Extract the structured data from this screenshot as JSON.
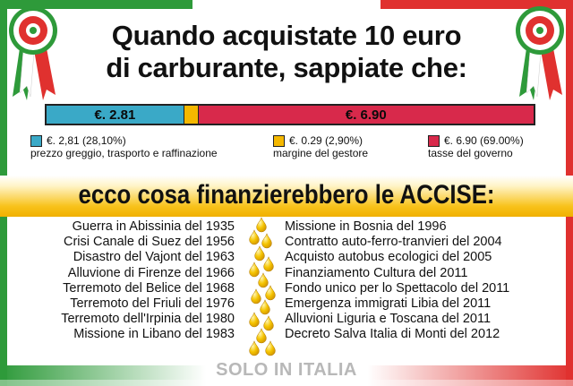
{
  "title_line1": "Quando acquistate 10 euro",
  "title_line2": "di carburante, sappiate che:",
  "bar": {
    "segments": [
      {
        "label": "€. 2.81",
        "value": 2.81,
        "color": "#3aa9c7"
      },
      {
        "label": "",
        "value": 0.29,
        "color": "#f5b800"
      },
      {
        "label": "€. 6.90",
        "value": 6.9,
        "color": "#d8294b"
      }
    ]
  },
  "legend": [
    {
      "line1": "€. 2,81 (28,10%)",
      "line2": "prezzo greggio, trasporto e raffinazione",
      "color": "#3aa9c7"
    },
    {
      "line1": "€. 0.29 (2,90%)",
      "line2": "margine del gestore",
      "color": "#f5b800"
    },
    {
      "line1": "€. 6.90 (69.00%)",
      "line2": "tasse del governo",
      "color": "#d8294b"
    }
  ],
  "accise_title": "ecco cosa finanzierebbero le ACCISE:",
  "left_items": [
    "Guerra in Abissinia del 1935",
    "Crisi Canale di Suez del 1956",
    "Disastro del Vajont del 1963",
    "Alluvione di Firenze del 1966",
    "Terremoto del Belice del 1968",
    "Terremoto del Friuli del 1976",
    "Terremoto dell'Irpinia del 1980",
    "Missione in Libano del 1983"
  ],
  "right_items": [
    "Missione in Bosnia del 1996",
    "Contratto auto-ferro-tranvieri del 2004",
    "Acquisto autobus ecologici del 2005",
    "Finanziamento Cultura del 2011",
    "Fondo unico per lo Spettacolo del 2011",
    "Emergenza immigrati Libia del 2011",
    "Alluvioni Liguria e Toscana del 2011",
    "Decreto Salva Italia di Monti del 2012"
  ],
  "footer": "SOLO IN ITALIA",
  "colors": {
    "green": "#2e9a3a",
    "red": "#e0312f",
    "gold": "#f5b800"
  }
}
